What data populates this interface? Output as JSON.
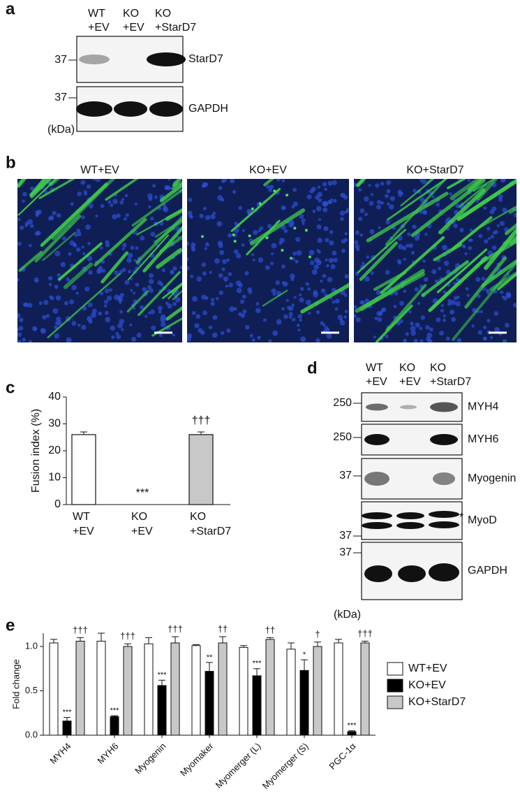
{
  "panel_labels": [
    "a",
    "b",
    "c",
    "d",
    "e"
  ],
  "panel_a": {
    "lanes": [
      [
        "WT",
        "+EV"
      ],
      [
        "KO",
        "+EV"
      ],
      [
        "KO",
        "+StarD7"
      ]
    ],
    "blots": [
      {
        "label": "StarD7",
        "marker": 37
      },
      {
        "label": "GAPDH",
        "marker": 37
      }
    ],
    "unit": "(kDa)"
  },
  "panel_b": {
    "titles": [
      "WT+EV",
      "KO+EV",
      "KO+StarD7"
    ]
  },
  "panel_d": {
    "lanes": [
      [
        "WT",
        "+EV"
      ],
      [
        "KO",
        "+EV"
      ],
      [
        "KO",
        "+StarD7"
      ]
    ],
    "blots": [
      {
        "label": "MYH4",
        "marker": 250
      },
      {
        "label": "MYH6",
        "marker": 250
      },
      {
        "label": "Myogenin",
        "marker": 37
      },
      {
        "label": "MyoD",
        "marker": 37,
        "note": "*"
      },
      {
        "label": "GAPDH",
        "marker": 37
      }
    ],
    "unit": "(kDa)"
  },
  "chart_data": [
    {
      "type": "bar",
      "ylabel": "Fusion index (%)",
      "categories": [
        [
          "WT",
          "+EV"
        ],
        [
          "KO",
          "+EV"
        ],
        [
          "KO",
          "+StarD7"
        ]
      ],
      "values": [
        26,
        0,
        26
      ],
      "errors": [
        1,
        0,
        1
      ],
      "colors": [
        "#ffffff",
        "#000000",
        "#c8c8c8"
      ],
      "annotations": [
        null,
        "***",
        "†††"
      ],
      "ylim": [
        0,
        40
      ],
      "yticks": [
        0,
        10,
        20,
        30,
        40
      ]
    },
    {
      "type": "grouped_bar",
      "ylabel": "Fold change",
      "categories": [
        "MYH4",
        "MYH6",
        "Myogenin",
        "Myomaker",
        "Myomerger (L)",
        "Myomerger (S)",
        "PGC-1α"
      ],
      "series": [
        {
          "name": "WT+EV",
          "color": "#ffffff",
          "values": [
            1.04,
            1.06,
            1.03,
            1.01,
            0.99,
            0.97,
            1.04
          ],
          "errors": [
            0.04,
            0.09,
            0.07,
            0.01,
            0.02,
            0.07,
            0.04
          ]
        },
        {
          "name": "KO+EV",
          "color": "#000000",
          "values": [
            0.16,
            0.21,
            0.56,
            0.72,
            0.67,
            0.73,
            0.04
          ],
          "errors": [
            0.04,
            0.01,
            0.06,
            0.1,
            0.08,
            0.12,
            0.01
          ],
          "annotations": [
            "***",
            "***",
            "***",
            "**",
            "***",
            "*",
            "***"
          ]
        },
        {
          "name": "KO+StarD7",
          "color": "#c8c8c8",
          "values": [
            1.06,
            1.0,
            1.04,
            1.04,
            1.08,
            1.0,
            1.04
          ],
          "errors": [
            0.04,
            0.03,
            0.07,
            0.07,
            0.02,
            0.05,
            0.02
          ],
          "annotations": [
            "†††",
            "†††",
            "†††",
            "††",
            "††",
            "†",
            "†††"
          ]
        }
      ],
      "ylim": [
        0,
        1.15
      ],
      "yticks": [
        {
          "value": 0,
          "label": "0.0"
        },
        0.5,
        {
          "value": 1,
          "label": "1.0"
        }
      ]
    }
  ]
}
